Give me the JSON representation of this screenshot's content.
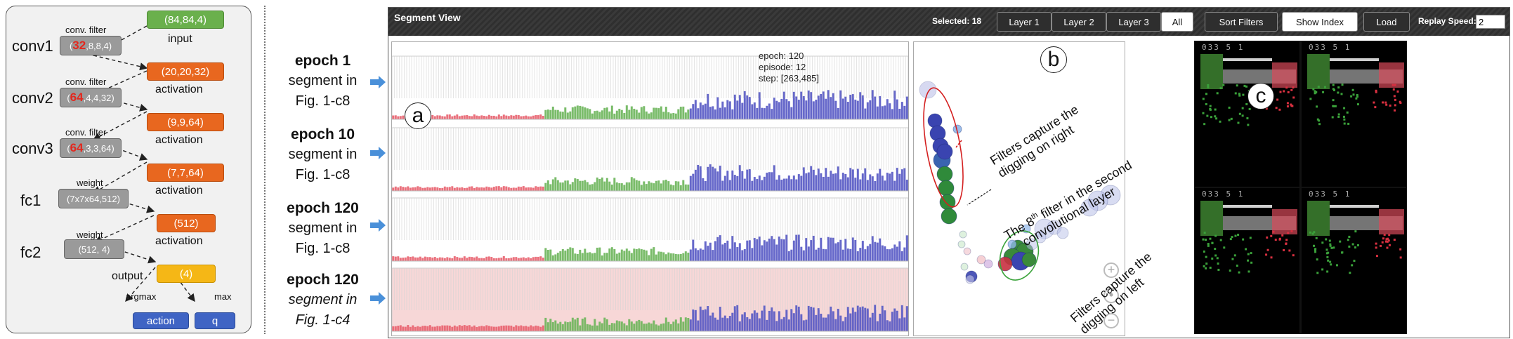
{
  "architecture": {
    "layers": [
      "conv1",
      "conv2",
      "conv3",
      "fc1",
      "fc2"
    ],
    "input": {
      "shape": "(84,84,4)",
      "label": "input"
    },
    "conv1": {
      "filter_label": "conv. filter",
      "filter_count": "32",
      "filter_rest": ",8,8,4)",
      "activation_shape": "(20,20,32)",
      "activation_label": "activation"
    },
    "conv2": {
      "filter_label": "conv. filter",
      "filter_count": "64",
      "filter_rest": ",4,4,32)",
      "activation_shape": "(9,9,64)",
      "activation_label": "activation"
    },
    "conv3": {
      "filter_label": "conv. filter",
      "filter_count": "64",
      "filter_rest": ",3,3,64)",
      "activation_shape": "(7,7,64)",
      "activation_label": "activation"
    },
    "fc1": {
      "weight_label": "weight",
      "weight_shape": "(7x7x64,512)",
      "activation_shape": "(512)",
      "activation_label": "activation"
    },
    "fc2": {
      "weight_label": "weight",
      "weight_shape": "(512, 4)",
      "output_shape": "(4)",
      "output_label": "output"
    },
    "argmax_label": "argmax",
    "max_label": "max",
    "action_label": "action",
    "q_label": "q"
  },
  "epochs": [
    {
      "title": "epoch 1",
      "line2": "segment  in",
      "line3": "Fig. 1-c8",
      "italic": false
    },
    {
      "title": "epoch 10",
      "line2": "segment in",
      "line3": "Fig. 1-c8",
      "italic": false
    },
    {
      "title": "epoch 120",
      "line2": "segment in",
      "line3": "Fig. 1-c8",
      "italic": false
    },
    {
      "title": "epoch 120",
      "line2": "segment in",
      "line3": "Fig. 1-c4",
      "italic": true
    }
  ],
  "toolbar": {
    "title": "Segment View",
    "selected": "Selected: 18",
    "layer_buttons": [
      "Layer 1",
      "Layer 2",
      "Layer 3",
      "All"
    ],
    "active_layer": "All",
    "sort_filters": "Sort Filters",
    "show_index": "Show Index",
    "load": "Load",
    "replay_speed_label": "Replay Speed:",
    "replay_speed_value": "2"
  },
  "panels": {
    "a": "a",
    "b": "b",
    "c": "c"
  },
  "stats": {
    "epoch": "epoch: 120",
    "episode": "episode: 12",
    "step": "step: [263,485]"
  },
  "annotations": {
    "right": [
      "Filters capture the",
      "digging on right"
    ],
    "filter8": [
      "The 8",
      "th",
      " filter in the second",
      "convolutional layer"
    ],
    "left": [
      "Filters capture the",
      "digging on left"
    ]
  },
  "zoom": {
    "in": "+",
    "reset": "•",
    "out": "−"
  },
  "frames": {
    "score_text": "033  5  1"
  },
  "colors": {
    "red": "#e8606e",
    "green": "#6bb55a",
    "blue": "#5558c4",
    "highlight_row": "#f7d7d7"
  }
}
